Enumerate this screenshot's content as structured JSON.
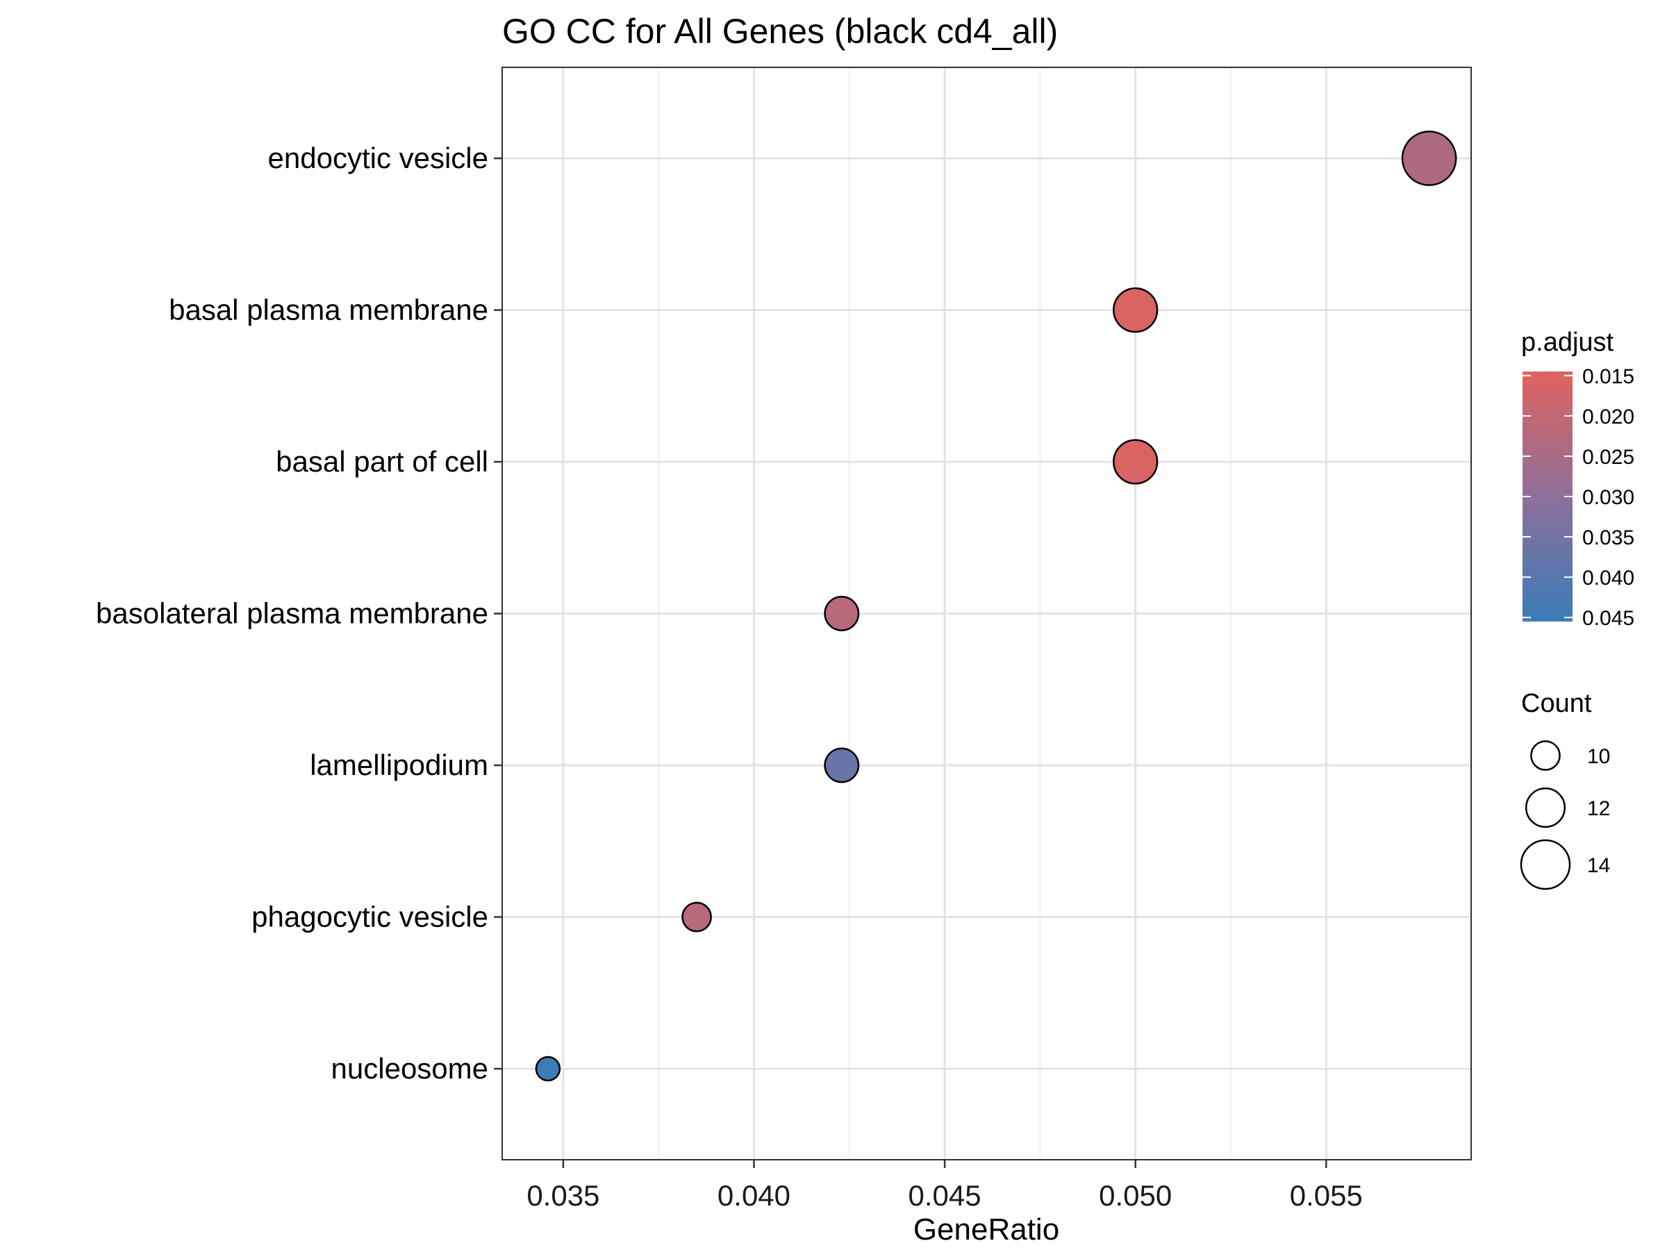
{
  "chart_data": {
    "type": "scatter",
    "title": "GO CC for All Genes (black cd4_all)",
    "xlabel": "GeneRatio",
    "ylabel": "",
    "xlim": [
      0.0334,
      0.0588
    ],
    "xticks": [
      "0.035",
      "0.040",
      "0.045",
      "0.050",
      "0.055"
    ],
    "xtick_values": [
      0.035,
      0.04,
      0.045,
      0.05,
      0.055
    ],
    "grid": true,
    "categories": [
      "endocytic vesicle",
      "basal plasma membrane",
      "basal part of cell",
      "basolateral plasma membrane",
      "lamellipodium",
      "phagocytic vesicle",
      "nucleosome"
    ],
    "points": [
      {
        "term": "endocytic vesicle",
        "gene_ratio": 0.0577,
        "count": 15,
        "p_adjust": 0.024
      },
      {
        "term": "basal plasma membrane",
        "gene_ratio": 0.05,
        "count": 13,
        "p_adjust": 0.016
      },
      {
        "term": "basal part of cell",
        "gene_ratio": 0.05,
        "count": 13,
        "p_adjust": 0.016
      },
      {
        "term": "basolateral plasma membrane",
        "gene_ratio": 0.0423,
        "count": 11,
        "p_adjust": 0.022
      },
      {
        "term": "lamellipodium",
        "gene_ratio": 0.0423,
        "count": 11,
        "p_adjust": 0.037
      },
      {
        "term": "phagocytic vesicle",
        "gene_ratio": 0.0385,
        "count": 10,
        "p_adjust": 0.022
      },
      {
        "term": "nucleosome",
        "gene_ratio": 0.0346,
        "count": 9,
        "p_adjust": 0.045
      }
    ],
    "color_legend": {
      "title": "p.adjust",
      "min": 0.0145,
      "max": 0.0455,
      "ticks": [
        "0.015",
        "0.020",
        "0.025",
        "0.030",
        "0.035",
        "0.040",
        "0.045"
      ],
      "tick_values": [
        0.015,
        0.02,
        0.025,
        0.03,
        0.035,
        0.04,
        0.045
      ],
      "low_color": "#e0635e",
      "mid_color": "#8e6f9a",
      "high_color": "#3b7cb8"
    },
    "size_legend": {
      "title": "Count",
      "values": [
        10,
        12,
        14
      ],
      "labels": [
        "10",
        "12",
        "14"
      ]
    },
    "legend_position": "right"
  }
}
